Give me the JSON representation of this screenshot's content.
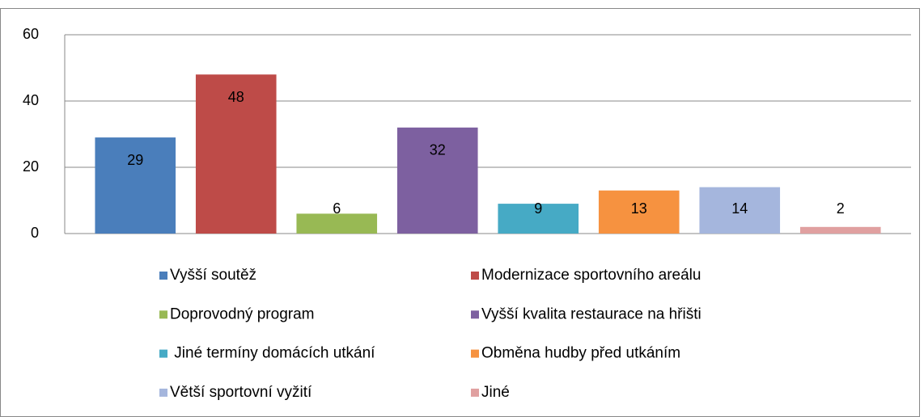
{
  "chart_data": {
    "type": "bar",
    "series": [
      {
        "name": "Vyšší soutěž",
        "color": "#4a7ebb",
        "values": [
          29
        ]
      },
      {
        "name": "Modernizace sportovního areálu",
        "color": "#be4b48",
        "values": [
          48
        ]
      },
      {
        "name": "Doprovodný program",
        "color": "#98b954",
        "values": [
          6
        ]
      },
      {
        "name": "Vyšší kvalita restaurace na hřišti",
        "color": "#7d60a0",
        "values": [
          32
        ]
      },
      {
        "name": " Jiné termíny domácích utkání",
        "color": "#46aac5",
        "values": [
          9
        ]
      },
      {
        "name": "Obměna hudby před utkáním",
        "color": "#f69240",
        "values": [
          13
        ]
      },
      {
        "name": "Větší sportovní vyžití",
        "color": "#a5b6dd",
        "values": [
          14
        ]
      },
      {
        "name": "Jiné",
        "color": "#e0a0a0",
        "values": [
          2
        ]
      }
    ],
    "ylim": [
      0,
      60
    ],
    "yticks": [
      0,
      20,
      40,
      60
    ],
    "grid": true,
    "legend": "bottom"
  }
}
